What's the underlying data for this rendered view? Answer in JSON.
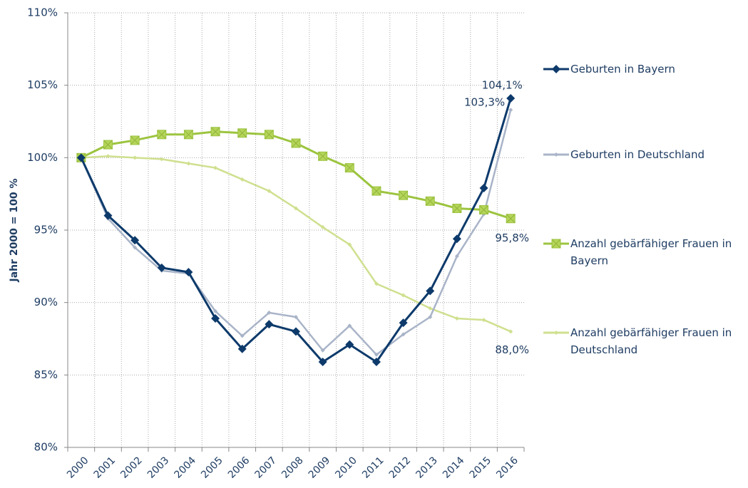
{
  "chart_data": {
    "type": "line",
    "ylabel": "Jahr 2000 = 100 %",
    "categories": [
      "2000",
      "2001",
      "2002",
      "2003",
      "2004",
      "2005",
      "2006",
      "2007",
      "2008",
      "2009",
      "2010",
      "2011",
      "2012",
      "2013",
      "2014",
      "2015",
      "2016"
    ],
    "series": [
      {
        "name": "Geburten in Bayern",
        "color": "#0d3a6b",
        "marker": "diamond",
        "values": [
          100,
          96.0,
          94.3,
          92.4,
          92.1,
          88.9,
          86.8,
          88.5,
          88.0,
          85.9,
          87.1,
          85.9,
          88.6,
          90.8,
          94.4,
          97.9,
          104.1
        ],
        "value_labels": [
          null,
          null,
          null,
          null,
          null,
          null,
          null,
          null,
          null,
          null,
          null,
          null,
          null,
          null,
          null,
          null,
          "104,1%"
        ]
      },
      {
        "name": "Geburten in Deutschland",
        "color": "#a9b4c8",
        "marker": "small-diamond",
        "values": [
          100,
          95.8,
          93.8,
          92.2,
          92.0,
          89.4,
          87.7,
          89.3,
          89.0,
          86.7,
          88.4,
          86.4,
          87.8,
          89.0,
          93.2,
          96.1,
          103.3
        ],
        "value_labels": [
          null,
          null,
          null,
          null,
          null,
          null,
          null,
          null,
          null,
          null,
          null,
          null,
          null,
          null,
          null,
          null,
          "103,3%"
        ]
      },
      {
        "name": "Anzahl gebärfähiger Frauen in Bayern",
        "color": "#9cc43f",
        "marker": "square",
        "values": [
          100,
          100.9,
          101.2,
          101.6,
          101.6,
          101.8,
          101.7,
          101.6,
          101.0,
          100.1,
          99.3,
          97.7,
          97.4,
          97.0,
          96.5,
          96.4,
          95.8
        ],
        "value_labels": [
          null,
          null,
          null,
          null,
          null,
          null,
          null,
          null,
          null,
          null,
          null,
          null,
          null,
          null,
          null,
          null,
          "95,8%"
        ]
      },
      {
        "name": "Anzahl gebärfähiger Frauen in Deutschland",
        "color": "#cfe08f",
        "marker": "small-diamond",
        "values": [
          100,
          100.1,
          100.0,
          99.9,
          99.6,
          99.3,
          98.5,
          97.7,
          96.5,
          95.2,
          94.0,
          91.3,
          90.5,
          89.6,
          88.9,
          88.8,
          88.0
        ],
        "value_labels": [
          null,
          null,
          null,
          null,
          null,
          null,
          null,
          null,
          null,
          null,
          null,
          null,
          null,
          null,
          null,
          null,
          "88,0%"
        ]
      }
    ],
    "ylim": [
      80,
      110
    ],
    "yticks": [
      {
        "value": 80,
        "label": "80%"
      },
      {
        "value": 85,
        "label": "85%"
      },
      {
        "value": 90,
        "label": "90%"
      },
      {
        "value": 95,
        "label": "95%"
      },
      {
        "value": 100,
        "label": "100%"
      },
      {
        "value": 105,
        "label": "105%"
      },
      {
        "value": 110,
        "label": "110%"
      }
    ],
    "grid": true,
    "legend": "right"
  }
}
